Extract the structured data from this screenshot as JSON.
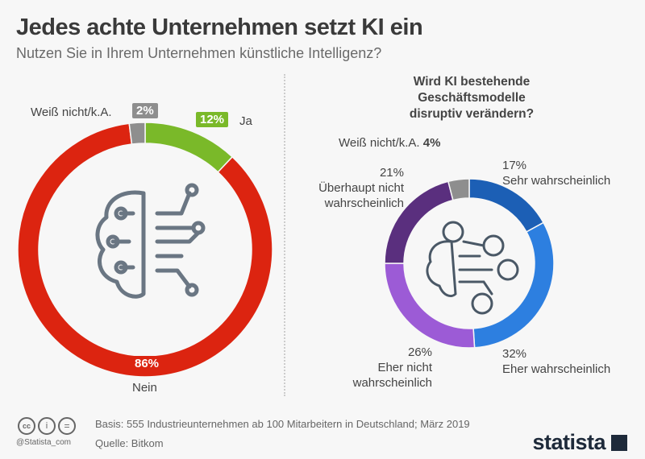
{
  "header": {
    "title": "Jedes achte Unternehmen setzt KI ein",
    "subtitle": "Nutzen Sie in Ihrem Unternehmen künstliche Intelligenz?"
  },
  "chart_data": [
    {
      "type": "pie",
      "variant": "donut",
      "title": "",
      "categories": [
        "Ja",
        "Nein",
        "Weiß nicht/k.A."
      ],
      "values": [
        12,
        86,
        2
      ],
      "value_labels": [
        "12%",
        "86%",
        "2%"
      ],
      "colors": [
        "#7ab929",
        "#dc2410",
        "#8e8e8e"
      ],
      "icon": "brain-circuit-icon"
    },
    {
      "type": "pie",
      "variant": "donut",
      "title": "Wird KI bestehende Geschäftsmodelle disruptiv verändern?",
      "categories": [
        "Sehr wahrscheinlich",
        "Eher wahrscheinlich",
        "Eher nicht wahrscheinlich",
        "Überhaupt nicht wahrscheinlich",
        "Weiß nicht/k.A."
      ],
      "values": [
        17,
        32,
        26,
        21,
        4
      ],
      "value_labels": [
        "17%",
        "32%",
        "26%",
        "21%",
        "4%"
      ],
      "colors": [
        "#1c5fb5",
        "#2d7fe0",
        "#9c5bd6",
        "#5a2f7e",
        "#8e8e8e"
      ],
      "icon": "ai-network-people-icon"
    }
  ],
  "labels": {
    "left": {
      "wn": "Weiß nicht/k.A.",
      "wn_val": "2%",
      "ja": "Ja",
      "ja_val": "12%",
      "nein": "Nein",
      "nein_val": "86%"
    },
    "right": {
      "title_l1": "Wird KI bestehende",
      "title_l2": "Geschäftsmodelle",
      "title_l3": "disruptiv verändern?",
      "wn": "Weiß nicht/k.A.",
      "wn_val": "4%",
      "sehr_val": "17%",
      "sehr": "Sehr wahrscheinlich",
      "eher_val": "32%",
      "eher": "Eher wahrscheinlich",
      "ehernicht_val": "26%",
      "ehernicht_l1": "Eher nicht",
      "ehernicht_l2": "wahrscheinlich",
      "ueber_val": "21%",
      "ueber_l1": "Überhaupt nicht",
      "ueber_l2": "wahrscheinlich"
    }
  },
  "footer": {
    "basis": "Basis: 555 Industrieunternehmen ab 100 Mitarbeitern in Deutschland; März 2019",
    "source": "Quelle: Bitkom",
    "handle": "@Statista_com",
    "brand": "statista",
    "license_icons": [
      "cc-icon",
      "by-icon",
      "nd-icon"
    ]
  }
}
